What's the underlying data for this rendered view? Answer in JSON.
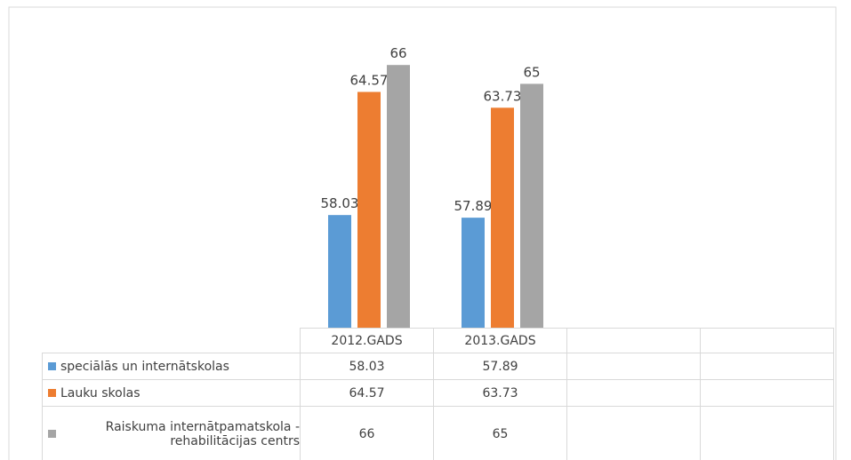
{
  "chart_data": {
    "type": "bar",
    "categories": [
      "2012.GADS",
      "2013.GADS",
      null,
      null
    ],
    "series": [
      {
        "name": "speciālās un internātskolas",
        "color": "#5b9bd5",
        "values": [
          58.03,
          57.89,
          null,
          null
        ]
      },
      {
        "name": "Lauku skolas",
        "color": "#ed7d31",
        "values": [
          64.57,
          63.73,
          null,
          null
        ]
      },
      {
        "name": "Raiskuma internātpamatskola - rehabilitācijas centrs",
        "color": "#a5a5a5",
        "values": [
          66,
          65,
          null,
          null
        ]
      }
    ],
    "ylim": [
      52,
      67
    ]
  }
}
